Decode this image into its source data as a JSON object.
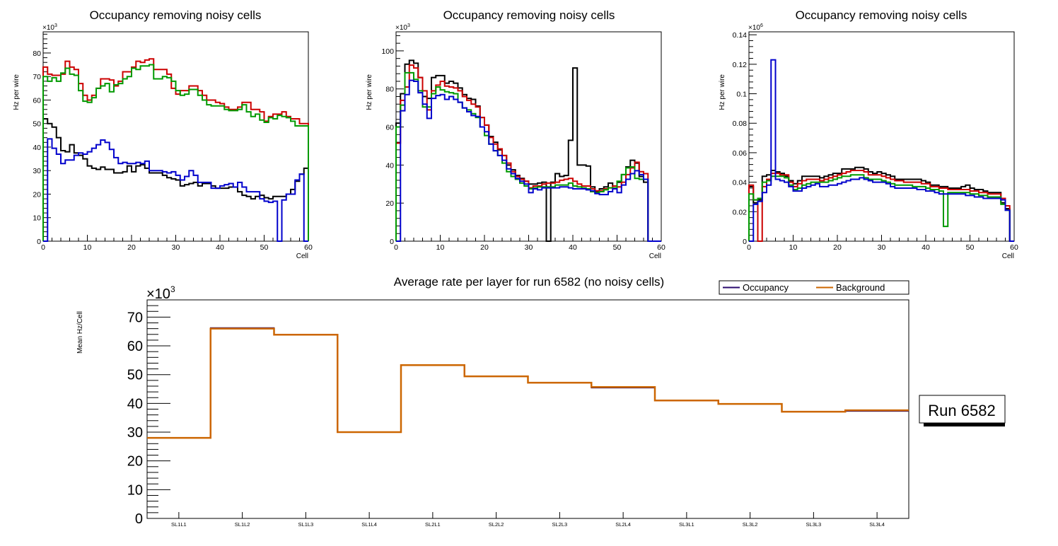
{
  "chart_data": [
    {
      "type": "histogram",
      "title": "Occupancy removing noisy cells",
      "xlabel": "Cell",
      "ylabel": "Hz per wire",
      "exponent_label": "×10",
      "exponent": "3",
      "xlim": [
        0,
        60
      ],
      "ylim": [
        0,
        89
      ],
      "xticks": [
        0,
        10,
        20,
        30,
        40,
        50,
        60
      ],
      "yticks": [
        0,
        10,
        20,
        30,
        40,
        50,
        60,
        70,
        80
      ],
      "ytick_labels": [
        "0",
        "10",
        "20",
        "30",
        "40",
        "50",
        "60",
        "70",
        "80"
      ],
      "series": [
        {
          "name": "black",
          "color": "#000000",
          "values": [
            52,
            50,
            48.5,
            44,
            38.5,
            38,
            41,
            37.5,
            36.5,
            35,
            32,
            31,
            30.5,
            31.5,
            30.5,
            30.5,
            29,
            29,
            29.5,
            32,
            29.5,
            32,
            32.5,
            31,
            29,
            29,
            29,
            28,
            27,
            26.5,
            26,
            23.5,
            24,
            24.5,
            25,
            23.5,
            24.5,
            24.5,
            23.5,
            22.5,
            22.5,
            22.5,
            23,
            23,
            21,
            19.5,
            19,
            18,
            19,
            19.5,
            18.5,
            18,
            19,
            19,
            19,
            20,
            22,
            25.5,
            28.5,
            31
          ]
        },
        {
          "name": "red",
          "color": "#cc0000",
          "values": [
            74,
            71,
            70.5,
            70.5,
            71,
            76.5,
            74,
            73,
            67,
            62,
            60,
            62,
            65,
            69,
            69,
            68.5,
            66,
            68,
            72,
            72,
            74,
            76.5,
            76,
            77,
            77.5,
            73,
            73,
            73,
            71,
            65,
            62.5,
            64,
            64,
            66,
            66,
            64,
            62,
            60,
            60,
            59,
            58.5,
            57,
            56,
            56,
            57,
            59,
            59,
            56,
            56,
            55,
            51,
            53,
            54,
            54,
            55,
            53,
            52,
            52,
            50,
            50
          ]
        },
        {
          "name": "green",
          "color": "#009900",
          "values": [
            70,
            68,
            69.5,
            68,
            71.5,
            73.5,
            71,
            70.5,
            64,
            59.5,
            59,
            61,
            65,
            66,
            67,
            63.5,
            66.5,
            67,
            69,
            70,
            73.5,
            73,
            74.5,
            74.5,
            75,
            69,
            69,
            70,
            69.5,
            68,
            64,
            62,
            62.5,
            64.5,
            64.5,
            62,
            60,
            58,
            57.5,
            57.5,
            57.5,
            56,
            55.5,
            55.5,
            56,
            58,
            55,
            53,
            54,
            51.5,
            50.5,
            52.5,
            52,
            53.5,
            53,
            52.5,
            51,
            49,
            49,
            49
          ]
        },
        {
          "name": "blue",
          "color": "#0000cc",
          "values": [
            0,
            43.5,
            39.5,
            37,
            33,
            34.5,
            34.5,
            36.5,
            37.5,
            37,
            38,
            39.5,
            41,
            43,
            42,
            39,
            35.5,
            33,
            33.5,
            33,
            33,
            33.5,
            33,
            34,
            30,
            30,
            30,
            29.5,
            29,
            29.5,
            28,
            26,
            27.5,
            30,
            28,
            25,
            25,
            25,
            22.5,
            22.5,
            23.5,
            24,
            24.5,
            23,
            25,
            23,
            21,
            21,
            21,
            18,
            17,
            16.5,
            17,
            0,
            17.5,
            20,
            20,
            26,
            28.5,
            0
          ]
        }
      ]
    },
    {
      "type": "histogram",
      "title": "Occupancy removing noisy cells",
      "xlabel": "Cell",
      "ylabel": "Hz per wire",
      "exponent_label": "×10",
      "exponent": "3",
      "xlim": [
        0,
        60
      ],
      "ylim": [
        0,
        110
      ],
      "xticks": [
        0,
        10,
        20,
        30,
        40,
        50,
        60
      ],
      "yticks": [
        0,
        20,
        40,
        60,
        80,
        100
      ],
      "ytick_labels": [
        "0",
        "20",
        "40",
        "60",
        "80",
        "100"
      ],
      "series": [
        {
          "name": "black",
          "color": "#000000",
          "values": [
            62,
            77.5,
            93,
            95,
            93.5,
            86,
            76,
            75,
            86,
            87,
            87,
            83,
            84,
            83,
            80.5,
            77,
            75,
            74.5,
            71,
            65,
            61,
            55,
            52,
            48,
            45,
            40,
            37.5,
            34.5,
            33,
            31.5,
            30,
            30,
            30.5,
            31,
            0,
            31,
            35.5,
            34,
            34.5,
            53,
            91,
            40,
            40,
            39.5,
            28.5,
            26,
            27.5,
            28.5,
            30.5,
            29,
            31,
            35,
            39,
            42.5,
            41,
            34,
            31,
            0,
            0,
            0
          ]
        },
        {
          "name": "red",
          "color": "#cc0000",
          "values": [
            51.5,
            74,
            81,
            92.5,
            91,
            86,
            79,
            69,
            79,
            82,
            84,
            81.5,
            81,
            80.5,
            79,
            76,
            74,
            72,
            70.5,
            65,
            61,
            54.5,
            51,
            48.5,
            45,
            41,
            36.5,
            34,
            32.5,
            31.5,
            28,
            29,
            29,
            30,
            30.5,
            30.5,
            31,
            32,
            32.5,
            33,
            31.5,
            30,
            29,
            29,
            27.5,
            26.5,
            26.5,
            27.5,
            28,
            29,
            28.5,
            31,
            35,
            38.5,
            41.5,
            36.5,
            35.5,
            0,
            0,
            0
          ]
        },
        {
          "name": "green",
          "color": "#009900",
          "values": [
            60,
            71.5,
            88.5,
            88.5,
            85,
            79,
            70.5,
            70.5,
            77.5,
            81,
            79.5,
            78.5,
            78,
            77.5,
            73,
            70,
            69,
            67,
            65,
            60,
            55.5,
            51,
            47.5,
            45,
            41,
            36.5,
            34,
            32.5,
            30.5,
            29,
            27.5,
            28,
            28.5,
            28.5,
            28.5,
            28.5,
            29.5,
            29.5,
            29.5,
            30.5,
            29,
            28.5,
            28,
            27.5,
            26,
            25.5,
            26,
            27,
            28,
            28,
            31.5,
            35,
            38.5,
            39,
            33,
            32.5,
            32.5,
            0,
            0,
            0
          ]
        },
        {
          "name": "blue",
          "color": "#0000cc",
          "values": [
            0,
            68.5,
            77,
            84.5,
            84,
            78,
            72,
            64.5,
            75,
            76.5,
            77,
            74.5,
            76,
            74.5,
            73,
            70,
            68,
            66,
            65.5,
            60,
            57.5,
            51,
            47.5,
            45,
            42.5,
            38,
            35.5,
            33,
            31.5,
            30,
            25.5,
            27.5,
            27,
            28,
            28,
            28,
            28,
            28.5,
            28.5,
            28,
            27.5,
            27.5,
            27.5,
            27,
            26.5,
            25,
            24.5,
            24.5,
            26,
            27.5,
            25.5,
            29.5,
            32.5,
            35.5,
            37,
            35,
            32.5,
            0,
            0,
            0
          ]
        }
      ]
    },
    {
      "type": "histogram",
      "title": "Occupancy removing noisy cells",
      "xlabel": "Cell",
      "ylabel": "Hz per wire",
      "exponent_label": "×10",
      "exponent": "6",
      "xlim": [
        0,
        60
      ],
      "ylim": [
        0,
        0.142
      ],
      "xticks": [
        0,
        10,
        20,
        30,
        40,
        50,
        60
      ],
      "yticks": [
        0,
        0.02,
        0.04,
        0.06,
        0.08,
        0.1,
        0.12,
        0.14
      ],
      "ytick_labels": [
        "0",
        "0.02",
        "0.04",
        "0.06",
        "0.08",
        "0.1",
        "0.12",
        "0.14"
      ],
      "series": [
        {
          "name": "black",
          "color": "#000000",
          "values": [
            0.037,
            0.026,
            0.028,
            0.044,
            0.045,
            0.048,
            0.047,
            0.046,
            0.044,
            0.041,
            0.039,
            0.041,
            0.044,
            0.044,
            0.044,
            0.044,
            0.043,
            0.044,
            0.045,
            0.046,
            0.046,
            0.049,
            0.049,
            0.049,
            0.05,
            0.05,
            0.049,
            0.047,
            0.046,
            0.047,
            0.046,
            0.045,
            0.044,
            0.042,
            0.042,
            0.042,
            0.042,
            0.042,
            0.042,
            0.041,
            0.04,
            0.038,
            0.038,
            0.037,
            0.037,
            0.036,
            0.036,
            0.036,
            0.037,
            0.038,
            0.036,
            0.035,
            0.035,
            0.034,
            0.033,
            0.033,
            0.033,
            0.026,
            0.022,
            0.0
          ]
        },
        {
          "name": "red",
          "color": "#cc0000",
          "values": [
            0.038,
            0.028,
            0.0,
            0.037,
            0.042,
            0.046,
            0.046,
            0.045,
            0.045,
            0.04,
            0.037,
            0.039,
            0.041,
            0.042,
            0.042,
            0.042,
            0.041,
            0.042,
            0.043,
            0.044,
            0.045,
            0.046,
            0.047,
            0.048,
            0.048,
            0.048,
            0.047,
            0.045,
            0.045,
            0.045,
            0.044,
            0.043,
            0.042,
            0.041,
            0.041,
            0.04,
            0.04,
            0.04,
            0.04,
            0.039,
            0.039,
            0.037,
            0.037,
            0.036,
            0.036,
            0.035,
            0.035,
            0.035,
            0.035,
            0.035,
            0.034,
            0.034,
            0.033,
            0.033,
            0.032,
            0.032,
            0.032,
            0.029,
            0.024,
            0.0
          ]
        },
        {
          "name": "green",
          "color": "#009900",
          "values": [
            0.032,
            0.028,
            0.029,
            0.04,
            0.041,
            0.044,
            0.044,
            0.044,
            0.043,
            0.038,
            0.035,
            0.036,
            0.038,
            0.039,
            0.04,
            0.04,
            0.04,
            0.04,
            0.041,
            0.042,
            0.043,
            0.044,
            0.044,
            0.045,
            0.045,
            0.045,
            0.043,
            0.042,
            0.042,
            0.042,
            0.041,
            0.04,
            0.039,
            0.038,
            0.038,
            0.038,
            0.038,
            0.037,
            0.037,
            0.037,
            0.036,
            0.035,
            0.035,
            0.034,
            0.01,
            0.033,
            0.033,
            0.033,
            0.033,
            0.033,
            0.032,
            0.032,
            0.031,
            0.031,
            0.03,
            0.03,
            0.03,
            0.025,
            0.021,
            0.0
          ]
        },
        {
          "name": "blue",
          "color": "#0000cc",
          "values": [
            0.0,
            0.025,
            0.027,
            0.033,
            0.038,
            0.123,
            0.042,
            0.041,
            0.04,
            0.037,
            0.034,
            0.034,
            0.036,
            0.037,
            0.038,
            0.039,
            0.037,
            0.037,
            0.038,
            0.038,
            0.039,
            0.04,
            0.041,
            0.042,
            0.042,
            0.043,
            0.042,
            0.041,
            0.04,
            0.04,
            0.04,
            0.039,
            0.037,
            0.036,
            0.036,
            0.036,
            0.036,
            0.036,
            0.035,
            0.035,
            0.034,
            0.034,
            0.033,
            0.032,
            0.032,
            0.032,
            0.032,
            0.032,
            0.032,
            0.031,
            0.031,
            0.03,
            0.03,
            0.029,
            0.029,
            0.029,
            0.029,
            0.028,
            0.021,
            0.0
          ]
        }
      ]
    },
    {
      "type": "histogram",
      "title": "Average rate per layer for run 6582 (no noisy cells)",
      "xlabel": "",
      "ylabel": "Mean Hz/Cell",
      "exponent_label": "×10",
      "exponent": "3",
      "ylim": [
        0,
        76
      ],
      "yticks": [
        0,
        10,
        20,
        30,
        40,
        50,
        60,
        70
      ],
      "ytick_labels": [
        "0",
        "10",
        "20",
        "30",
        "40",
        "50",
        "60",
        "70"
      ],
      "categories": [
        "SL1L1",
        "SL1L2",
        "SL1L3",
        "SL1L4",
        "SL2L1",
        "SL2L2",
        "SL2L3",
        "SL2L4",
        "SL3L1",
        "SL3L2",
        "SL3L3",
        "SL3L4"
      ],
      "legend": {
        "position": "top-right",
        "entries": [
          "Occupancy",
          "Background"
        ]
      },
      "series": [
        {
          "name": "Occupancy",
          "color": "#2a0a6e",
          "values": [
            28.0,
            66.3,
            63.9,
            30.0,
            53.3,
            49.4,
            47.2,
            45.4,
            41.0,
            39.8,
            37.1,
            37.3
          ]
        },
        {
          "name": "Background",
          "color": "#cc6600",
          "values": [
            28.0,
            66.0,
            63.9,
            30.0,
            53.3,
            49.4,
            47.2,
            45.7,
            41.0,
            39.8,
            37.1,
            37.6
          ]
        }
      ],
      "annotation": "Run 6582"
    }
  ]
}
